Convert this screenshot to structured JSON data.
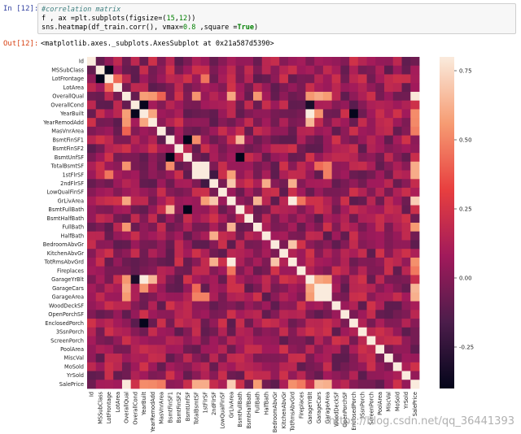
{
  "cell_in": {
    "prompt": "In [12]:",
    "lines": [
      {
        "parts": [
          {
            "t": "#correlation matrix",
            "c": "comment"
          }
        ]
      },
      {
        "parts": [
          {
            "t": "f , ax =plt.subplots(figsize=(",
            "c": ""
          },
          {
            "t": "15",
            "c": "num"
          },
          {
            "t": ",",
            "c": ""
          },
          {
            "t": "12",
            "c": "num"
          },
          {
            "t": "))",
            "c": ""
          }
        ]
      },
      {
        "parts": [
          {
            "t": "sns.heatmap(df_train.corr(), vmax=",
            "c": ""
          },
          {
            "t": "0.8",
            "c": "num"
          },
          {
            "t": " ,square =",
            "c": ""
          },
          {
            "t": "True",
            "c": "kw"
          },
          {
            "t": ")",
            "c": ""
          }
        ]
      }
    ]
  },
  "cell_out": {
    "prompt": "Out[12]:",
    "text": "<matplotlib.axes._subplots.AxesSubplot at 0x21a587d5390>"
  },
  "watermark": "https://blog.csdn.net/qq_36441393",
  "chart_data": {
    "type": "heatmap",
    "labels": [
      "Id",
      "MSSubClass",
      "LotFrontage",
      "LotArea",
      "OverallQual",
      "OverallCond",
      "YearBuilt",
      "YearRemodAdd",
      "MasVnrArea",
      "BsmtFinSF1",
      "BsmtFinSF2",
      "BsmtUnfSF",
      "TotalBsmtSF",
      "1stFlrSF",
      "2ndFlrSF",
      "LowQualFinSF",
      "GrLivArea",
      "BsmtFullBath",
      "BsmtHalfBath",
      "FullBath",
      "HalfBath",
      "BedroomAbvGr",
      "KitchenAbvGr",
      "TotRmsAbvGrd",
      "Fireplaces",
      "GarageYrBlt",
      "GarageCars",
      "GarageArea",
      "WoodDeckSF",
      "OpenPorchSF",
      "EnclosedPorch",
      "3SsnPorch",
      "ScreenPorch",
      "PoolArea",
      "MiscVal",
      "MoSold",
      "YrSold",
      "SalePrice"
    ],
    "vmin": -0.4,
    "vmax": 0.8,
    "colorbar_ticks": [
      "0.75",
      "0.50",
      "0.25",
      "0.00",
      "-0.25"
    ],
    "colorbar_tick_values": [
      0.75,
      0.5,
      0.25,
      0.0,
      -0.25
    ],
    "colormap": [
      "#03051a",
      "#4c1d4b",
      "#a11a5b",
      "#e83f3f",
      "#f69c73",
      "#faebdd"
    ],
    "high_pairs": [
      [
        "OverallQual",
        "SalePrice",
        0.79
      ],
      [
        "GarageCars",
        "GarageArea",
        0.88
      ],
      [
        "YearBuilt",
        "GarageYrBlt",
        0.83
      ],
      [
        "TotalBsmtSF",
        "1stFlrSF",
        0.82
      ],
      [
        "GrLivArea",
        "TotRmsAbvGrd",
        0.83
      ],
      [
        "GrLivArea",
        "SalePrice",
        0.71
      ],
      [
        "GarageCars",
        "SalePrice",
        0.64
      ],
      [
        "GarageArea",
        "SalePrice",
        0.62
      ],
      [
        "TotalBsmtSF",
        "SalePrice",
        0.61
      ],
      [
        "1stFlrSF",
        "SalePrice",
        0.61
      ],
      [
        "FullBath",
        "SalePrice",
        0.56
      ],
      [
        "TotRmsAbvGrd",
        "SalePrice",
        0.53
      ],
      [
        "YearBuilt",
        "SalePrice",
        0.52
      ],
      [
        "YearRemodAdd",
        "SalePrice",
        0.51
      ],
      [
        "OverallQual",
        "GarageCars",
        0.6
      ],
      [
        "OverallQual",
        "GrLivArea",
        0.59
      ],
      [
        "OverallQual",
        "YearBuilt",
        0.57
      ],
      [
        "OverallQual",
        "GarageArea",
        0.56
      ],
      [
        "OverallQual",
        "FullBath",
        0.55
      ],
      [
        "OverallQual",
        "YearRemodAdd",
        0.55
      ],
      [
        "OverallQual",
        "TotalBsmtSF",
        0.54
      ],
      [
        "OverallQual",
        "GarageYrBlt",
        0.55
      ],
      [
        "YearBuilt",
        "YearRemodAdd",
        0.59
      ],
      [
        "YearBuilt",
        "GarageCars",
        0.54
      ],
      [
        "YearRemodAdd",
        "GarageYrBlt",
        0.64
      ],
      [
        "2ndFlrSF",
        "GrLivArea",
        0.69
      ],
      [
        "2ndFlrSF",
        "HalfBath",
        0.61
      ],
      [
        "2ndFlrSF",
        "TotRmsAbvGrd",
        0.62
      ],
      [
        "GrLivArea",
        "FullBath",
        0.63
      ],
      [
        "BedroomAbvGr",
        "TotRmsAbvGrd",
        0.68
      ],
      [
        "BsmtFinSF1",
        "BsmtFullBath",
        0.65
      ],
      [
        "BsmtFinSF1",
        "TotalBsmtSF",
        0.52
      ],
      [
        "GarageYrBlt",
        "GarageCars",
        0.59
      ],
      [
        "GarageYrBlt",
        "GarageArea",
        0.56
      ],
      [
        "1stFlrSF",
        "GrLivArea",
        0.57
      ],
      [
        "MSSubClass",
        "LotFrontage",
        -0.39
      ],
      [
        "BsmtFinSF1",
        "BsmtUnfSF",
        -0.5
      ],
      [
        "BsmtFullBath",
        "BsmtUnfSF",
        -0.42
      ],
      [
        "YearBuilt",
        "EnclosedPorch",
        -0.39
      ],
      [
        "YearBuilt",
        "OverallCond",
        -0.38
      ],
      [
        "OverallCond",
        "GarageYrBlt",
        -0.32
      ],
      [
        "2ndFlrSF",
        "1stFlrSF",
        -0.2
      ],
      [
        "LotFrontage",
        "1stFlrSF",
        0.46
      ],
      [
        "LotFrontage",
        "LotArea",
        0.43
      ],
      [
        "MasVnrArea",
        "OverallQual",
        0.41
      ],
      [
        "MasVnrArea",
        "SalePrice",
        0.48
      ],
      [
        "Fireplaces",
        "SalePrice",
        0.47
      ],
      [
        "Fireplaces",
        "GrLivArea",
        0.46
      ],
      [
        "TotalBsmtSF",
        "GarageArea",
        0.49
      ],
      [
        "TotalBsmtSF",
        "GarageCars",
        0.43
      ],
      [
        "1stFlrSF",
        "GarageArea",
        0.49
      ]
    ]
  }
}
